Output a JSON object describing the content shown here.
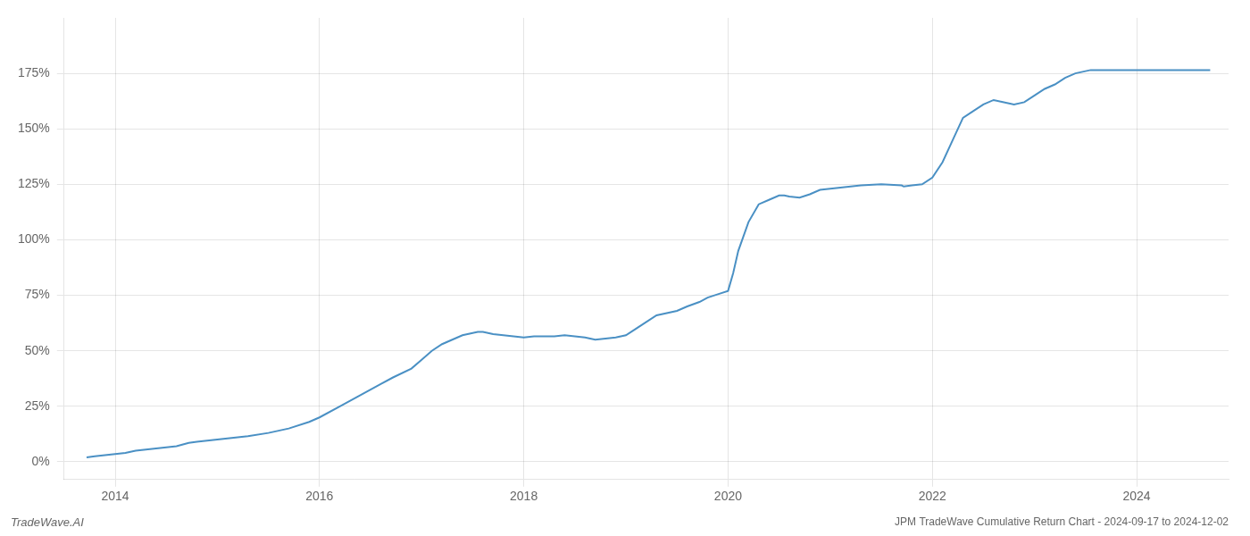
{
  "chart_data": {
    "type": "line",
    "title": "JPM TradeWave Cumulative Return Chart - 2024-09-17 to 2024-12-02",
    "annotations": [
      "TradeWave.AI"
    ],
    "x": [
      2013.72,
      2013.8,
      2013.9,
      2014.0,
      2014.1,
      2014.2,
      2014.4,
      2014.6,
      2014.72,
      2014.8,
      2014.9,
      2015.0,
      2015.1,
      2015.2,
      2015.3,
      2015.5,
      2015.7,
      2015.9,
      2016.0,
      2016.2,
      2016.4,
      2016.6,
      2016.72,
      2016.9,
      2017.0,
      2017.1,
      2017.2,
      2017.3,
      2017.4,
      2017.5,
      2017.55,
      2017.6,
      2017.65,
      2017.7,
      2017.8,
      2017.9,
      2018.0,
      2018.1,
      2018.2,
      2018.3,
      2018.4,
      2018.5,
      2018.6,
      2018.65,
      2018.7,
      2018.8,
      2018.9,
      2019.0,
      2019.1,
      2019.2,
      2019.3,
      2019.5,
      2019.6,
      2019.72,
      2019.8,
      2019.9,
      2020.0,
      2020.05,
      2020.1,
      2020.2,
      2020.3,
      2020.4,
      2020.5,
      2020.55,
      2020.6,
      2020.7,
      2020.8,
      2020.9,
      2021.0,
      2021.1,
      2021.2,
      2021.3,
      2021.5,
      2021.7,
      2021.72,
      2021.8,
      2021.9,
      2022.0,
      2022.1,
      2022.2,
      2022.3,
      2022.4,
      2022.5,
      2022.6,
      2022.7,
      2022.8,
      2022.9,
      2023.0,
      2023.1,
      2023.2,
      2023.3,
      2023.4,
      2023.5,
      2023.55,
      2023.6,
      2023.65,
      2023.7,
      2023.8,
      2023.9,
      2024.0,
      2024.1,
      2024.2,
      2024.3,
      2024.4,
      2024.5,
      2024.6,
      2024.72
    ],
    "values": [
      2.0,
      2.5,
      3.0,
      3.5,
      4.0,
      5.0,
      6.0,
      7.0,
      8.5,
      9.0,
      9.5,
      10.0,
      10.5,
      11.0,
      11.5,
      13.0,
      15.0,
      18.0,
      20.0,
      25.0,
      30.0,
      35.0,
      38.0,
      42.0,
      46.0,
      50.0,
      53.0,
      55.0,
      57.0,
      58.0,
      58.5,
      58.5,
      58.0,
      57.5,
      57.0,
      56.5,
      56.0,
      56.5,
      56.5,
      56.5,
      57.0,
      56.5,
      56.0,
      55.5,
      55.0,
      55.5,
      56.0,
      57.0,
      60.0,
      63.0,
      66.0,
      68.0,
      70.0,
      72.0,
      74.0,
      75.5,
      77.0,
      85.0,
      95.0,
      108.0,
      116.0,
      118.0,
      120.0,
      120.0,
      119.5,
      119.0,
      120.5,
      122.5,
      123.0,
      123.5,
      124.0,
      124.5,
      125.0,
      124.5,
      124.0,
      124.5,
      125.0,
      128.0,
      135.0,
      145.0,
      155.0,
      158.0,
      161.0,
      163.0,
      162.0,
      161.0,
      162.0,
      165.0,
      168.0,
      170.0,
      173.0,
      175.0,
      176.0,
      176.5,
      176.5,
      176.5,
      176.5,
      176.5,
      176.5,
      176.5,
      176.5,
      176.5,
      176.5,
      176.5,
      176.5,
      176.5,
      176.5
    ],
    "color": "#4a90c4",
    "xlim": [
      2013.5,
      2024.9
    ],
    "ylim": [
      -8,
      200
    ],
    "xticks": [
      2014,
      2016,
      2018,
      2020,
      2022,
      2024
    ],
    "yticks": [
      {
        "value": 0,
        "label": "0%"
      },
      {
        "value": 25,
        "label": "25%"
      },
      {
        "value": 50,
        "label": "50%"
      },
      {
        "value": 75,
        "label": "75%"
      },
      {
        "value": 100,
        "label": "100%"
      },
      {
        "value": 125,
        "label": "125%"
      },
      {
        "value": 150,
        "label": "150%"
      },
      {
        "value": 175,
        "label": "175%"
      }
    ],
    "grid": true
  }
}
